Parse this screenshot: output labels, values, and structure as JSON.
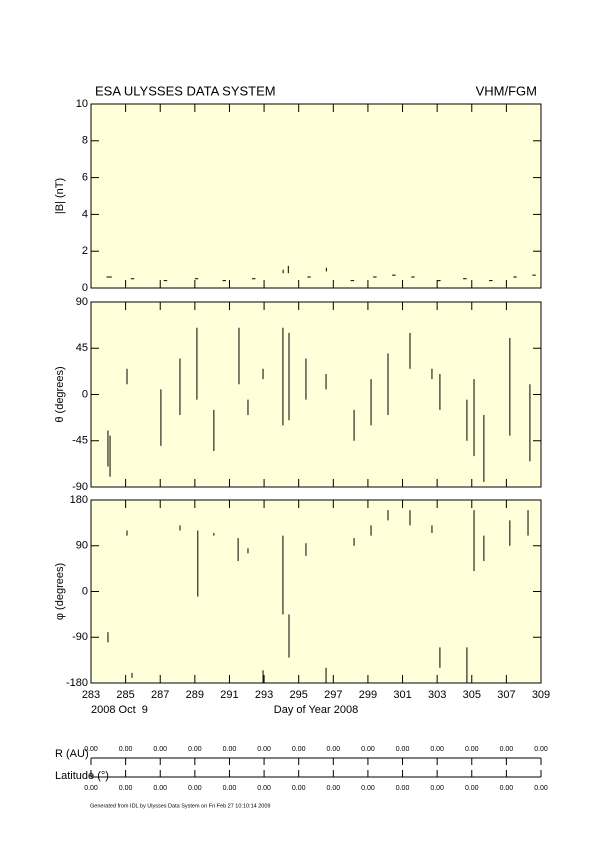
{
  "header": {
    "title": "ESA ULYSSES DATA SYSTEM",
    "instrument": "VHM/FGM"
  },
  "chart_data": [
    {
      "type": "line",
      "ylabel": "|B| (nT)",
      "plot_background": "#ffffd9",
      "color": "#000000",
      "xlim": [
        283,
        309
      ],
      "xticks": [
        283,
        285,
        287,
        289,
        291,
        293,
        295,
        297,
        299,
        301,
        303,
        305,
        307,
        309
      ],
      "ylim": [
        0,
        10
      ],
      "yticks": [
        0,
        2,
        4,
        6,
        8,
        10
      ],
      "x": [
        283.9,
        284.2,
        null,
        285.3,
        285.5,
        null,
        287.2,
        287.4,
        null,
        289.0,
        289.2,
        null,
        290.6,
        290.8,
        null,
        292.3,
        292.5,
        null,
        294.1,
        294.1,
        null,
        294.4,
        294.4,
        null,
        295.5,
        295.7,
        null,
        296.6,
        296.6,
        null,
        298.0,
        298.2,
        null,
        299.3,
        299.5,
        null,
        300.4,
        300.6,
        null,
        301.5,
        301.7,
        null,
        303.0,
        303.2,
        null,
        304.5,
        304.7,
        null,
        306.0,
        306.2,
        null,
        307.4,
        307.6,
        null,
        308.5,
        308.7
      ],
      "values": [
        0.6,
        0.6,
        null,
        0.5,
        0.5,
        null,
        0.4,
        0.4,
        null,
        0.5,
        0.5,
        null,
        0.4,
        0.4,
        null,
        0.5,
        0.5,
        null,
        1.0,
        0.8,
        null,
        1.2,
        0.8,
        null,
        0.6,
        0.6,
        null,
        1.1,
        0.9,
        null,
        0.4,
        0.4,
        null,
        0.6,
        0.6,
        null,
        0.7,
        0.7,
        null,
        0.6,
        0.6,
        null,
        0.4,
        0.4,
        null,
        0.5,
        0.5,
        null,
        0.4,
        0.4,
        null,
        0.6,
        0.6,
        null,
        0.7,
        0.7
      ]
    },
    {
      "type": "line",
      "ylabel": "θ (degrees)",
      "plot_background": "#ffffd9",
      "color": "#000000",
      "xlim": [
        283,
        309
      ],
      "xticks": [
        283,
        285,
        287,
        289,
        291,
        293,
        295,
        297,
        299,
        301,
        303,
        305,
        307,
        309
      ],
      "ylim": [
        -90,
        90
      ],
      "yticks": [
        -90,
        -45,
        0,
        45,
        90
      ],
      "x": [
        283.98,
        283.98,
        null,
        284.1,
        284.1,
        null,
        285.08,
        285.08,
        null,
        287.04,
        287.04,
        null,
        288.14,
        288.14,
        null,
        289.12,
        289.12,
        null,
        290.1,
        290.1,
        null,
        291.55,
        291.55,
        null,
        292.07,
        292.07,
        null,
        292.94,
        292.94,
        null,
        294.09,
        294.09,
        null,
        294.44,
        294.44,
        null,
        295.42,
        295.42,
        null,
        296.58,
        296.58,
        null,
        298.2,
        298.2,
        null,
        299.18,
        299.18,
        null,
        300.16,
        300.16,
        null,
        301.43,
        301.43,
        null,
        302.7,
        302.7,
        null,
        303.16,
        303.16,
        null,
        304.72,
        304.72,
        null,
        305.13,
        305.13,
        null,
        305.7,
        305.7,
        null,
        307.2,
        307.2,
        null,
        308.36,
        308.36
      ],
      "values": [
        -35,
        -70,
        null,
        -40,
        -80,
        null,
        25,
        10,
        null,
        5,
        -50,
        null,
        35,
        -20,
        null,
        65,
        -5,
        null,
        -15,
        -55,
        null,
        65,
        10,
        null,
        -5,
        -20,
        null,
        25,
        15,
        null,
        65,
        -30,
        null,
        60,
        -25,
        null,
        35,
        -5,
        null,
        20,
        5,
        null,
        -15,
        -45,
        null,
        15,
        -30,
        null,
        40,
        -20,
        null,
        60,
        25,
        null,
        25,
        15,
        null,
        20,
        -15,
        null,
        -5,
        -45,
        null,
        15,
        -60,
        null,
        -20,
        -85,
        null,
        55,
        -40,
        null,
        10,
        -65
      ]
    },
    {
      "type": "line",
      "ylabel": "φ (degrees)",
      "plot_background": "#ffffd9",
      "color": "#000000",
      "xlim": [
        283,
        309
      ],
      "xticks": [
        283,
        285,
        287,
        289,
        291,
        293,
        295,
        297,
        299,
        301,
        303,
        305,
        307,
        309
      ],
      "ylim": [
        -180,
        180
      ],
      "yticks": [
        -180,
        -90,
        0,
        90,
        180
      ],
      "xlabel": "Day of Year 2008",
      "start_date": "2008 Oct  9",
      "x": [
        283.98,
        283.98,
        null,
        285.08,
        285.08,
        null,
        285.37,
        285.37,
        null,
        288.14,
        288.14,
        null,
        289.17,
        289.17,
        null,
        290.1,
        290.1,
        null,
        291.5,
        291.5,
        null,
        292.07,
        292.07,
        null,
        292.94,
        292.94,
        null,
        294.09,
        294.09,
        null,
        294.44,
        294.44,
        null,
        295.42,
        295.42,
        null,
        296.58,
        296.58,
        null,
        298.2,
        298.2,
        null,
        299.18,
        299.18,
        null,
        300.16,
        300.16,
        null,
        301.43,
        301.43,
        null,
        302.7,
        302.7,
        null,
        303.16,
        303.16,
        null,
        304.72,
        304.72,
        null,
        305.13,
        305.13,
        null,
        305.7,
        305.7,
        null,
        307.2,
        307.2,
        null,
        308.25,
        308.25
      ],
      "values": [
        -80,
        -100,
        null,
        120,
        110,
        null,
        -160,
        -170,
        null,
        130,
        120,
        null,
        120,
        -10,
        null,
        115,
        110,
        null,
        105,
        60,
        null,
        85,
        75,
        null,
        -155,
        -180,
        null,
        110,
        -45,
        null,
        -45,
        -130,
        null,
        95,
        70,
        null,
        -150,
        -180,
        null,
        105,
        90,
        null,
        130,
        110,
        null,
        160,
        140,
        null,
        160,
        130,
        null,
        130,
        115,
        null,
        -110,
        -150,
        null,
        -110,
        -180,
        null,
        160,
        40,
        null,
        110,
        60,
        null,
        140,
        90,
        null,
        160,
        110
      ]
    }
  ],
  "orbit": {
    "r_label": "R (AU)",
    "r_values": [
      "0.00",
      "0.00",
      "0.00",
      "0.00",
      "0.00",
      "0.00",
      "0.00",
      "0.00",
      "0.00",
      "0.00",
      "0.00",
      "0.00",
      "0.00",
      "0.00"
    ],
    "lat_label": "Latitude (°)",
    "lat_values": [
      "0.00",
      "0.00",
      "0.00",
      "0.00",
      "0.00",
      "0.00",
      "0.00",
      "0.00",
      "0.00",
      "0.00",
      "0.00",
      "0.00",
      "0.00",
      "0.00"
    ]
  },
  "footer": "Generated from IDL by Ulysses Data System on Fri Feb 27 10:10:14 2009"
}
